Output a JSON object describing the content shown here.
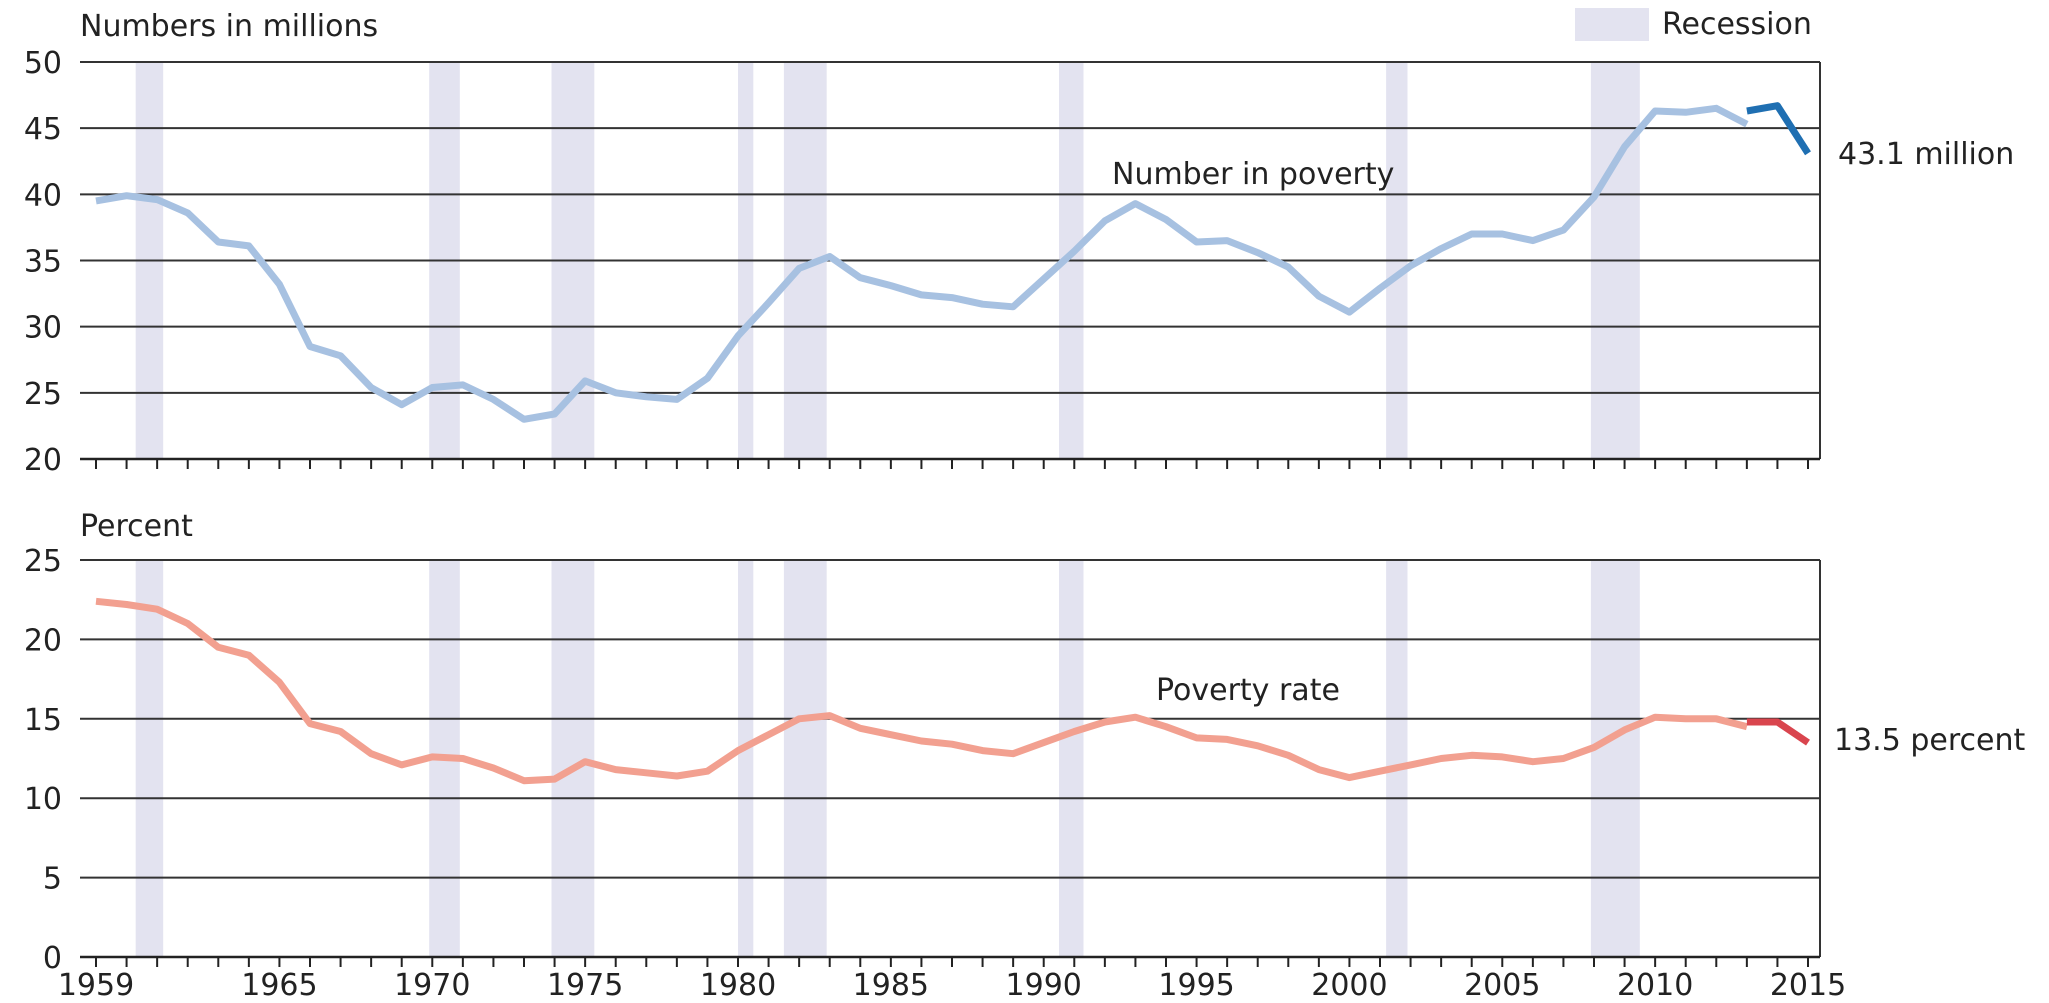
{
  "chart_data": [
    {
      "type": "line",
      "title": "",
      "ylabel": "Numbers in millions",
      "xlabel": "",
      "xlim": [
        1959,
        2015
      ],
      "ylim": [
        20,
        50
      ],
      "yticks": [
        "20",
        "25",
        "30",
        "35",
        "40",
        "45",
        "50"
      ],
      "xticks": [
        "1959",
        "1965",
        "1970",
        "1975",
        "1980",
        "1985",
        "1990",
        "1995",
        "2000",
        "2005",
        "2010",
        "2015"
      ],
      "grid": "horizontal",
      "annotation": "Number in poverty",
      "end_label": "43.1 million",
      "series": [
        {
          "color": "#a7c1e1",
          "x": [
            1959,
            1960,
            1961,
            1962,
            1963,
            1964,
            1965,
            1966,
            1967,
            1968,
            1969,
            1970,
            1971,
            1972,
            1973,
            1974,
            1975,
            1976,
            1977,
            1978,
            1979,
            1980,
            1981,
            1982,
            1983,
            1984,
            1985,
            1986,
            1987,
            1988,
            1989,
            1990,
            1991,
            1992,
            1993,
            1994,
            1995,
            1996,
            1997,
            1998,
            1999,
            2000,
            2001,
            2002,
            2003,
            2004,
            2005,
            2006,
            2007,
            2008,
            2009,
            2010,
            2011,
            2012,
            2013
          ],
          "values": [
            39.5,
            39.9,
            39.6,
            38.6,
            36.4,
            36.1,
            33.2,
            28.5,
            27.8,
            25.4,
            24.1,
            25.4,
            25.6,
            24.5,
            23.0,
            23.4,
            25.9,
            25.0,
            24.7,
            24.5,
            26.1,
            29.3,
            31.8,
            34.4,
            35.3,
            33.7,
            33.1,
            32.4,
            32.2,
            31.7,
            31.5,
            33.6,
            35.7,
            38.0,
            39.3,
            38.1,
            36.4,
            36.5,
            35.6,
            34.5,
            32.3,
            31.1,
            32.9,
            34.6,
            35.9,
            37.0,
            37.0,
            36.5,
            37.3,
            39.8,
            43.6,
            46.3,
            46.2,
            46.5,
            45.3
          ]
        },
        {
          "color": "#1f6fb2",
          "x": [
            2013,
            2014,
            2015
          ],
          "values": [
            46.3,
            46.7,
            43.1
          ]
        }
      ]
    },
    {
      "type": "line",
      "title": "",
      "ylabel": "Percent",
      "xlabel": "",
      "xlim": [
        1959,
        2015
      ],
      "ylim": [
        0,
        25
      ],
      "yticks": [
        "0",
        "5",
        "10",
        "15",
        "20",
        "25"
      ],
      "xticks": [
        "1959",
        "1965",
        "1970",
        "1975",
        "1980",
        "1985",
        "1990",
        "1995",
        "2000",
        "2005",
        "2010",
        "2015"
      ],
      "grid": "horizontal",
      "annotation": "Poverty rate",
      "end_label": "13.5 percent",
      "series": [
        {
          "color": "#f2a090",
          "x": [
            1959,
            1960,
            1961,
            1962,
            1963,
            1964,
            1965,
            1966,
            1967,
            1968,
            1969,
            1970,
            1971,
            1972,
            1973,
            1974,
            1975,
            1976,
            1977,
            1978,
            1979,
            1980,
            1981,
            1982,
            1983,
            1984,
            1985,
            1986,
            1987,
            1988,
            1989,
            1990,
            1991,
            1992,
            1993,
            1994,
            1995,
            1996,
            1997,
            1998,
            1999,
            2000,
            2001,
            2002,
            2003,
            2004,
            2005,
            2006,
            2007,
            2008,
            2009,
            2010,
            2011,
            2012,
            2013
          ],
          "values": [
            22.4,
            22.2,
            21.9,
            21.0,
            19.5,
            19.0,
            17.3,
            14.7,
            14.2,
            12.8,
            12.1,
            12.6,
            12.5,
            11.9,
            11.1,
            11.2,
            12.3,
            11.8,
            11.6,
            11.4,
            11.7,
            13.0,
            14.0,
            15.0,
            15.2,
            14.4,
            14.0,
            13.6,
            13.4,
            13.0,
            12.8,
            13.5,
            14.2,
            14.8,
            15.1,
            14.5,
            13.8,
            13.7,
            13.3,
            12.7,
            11.8,
            11.3,
            11.7,
            12.1,
            12.5,
            12.7,
            12.6,
            12.3,
            12.5,
            13.2,
            14.3,
            15.1,
            15.0,
            15.0,
            14.5
          ]
        },
        {
          "color": "#d9454e",
          "x": [
            2013,
            2014,
            2015
          ],
          "values": [
            14.8,
            14.8,
            13.5
          ]
        }
      ]
    }
  ],
  "recessions": [
    [
      1960.3,
      1961.2
    ],
    [
      1969.9,
      1970.9
    ],
    [
      1973.9,
      1975.3
    ],
    [
      1980.0,
      1980.5
    ],
    [
      1981.5,
      1982.9
    ],
    [
      1990.5,
      1991.3
    ],
    [
      2001.2,
      2001.9
    ],
    [
      2007.9,
      2009.5
    ]
  ],
  "legend": {
    "label": "Recession",
    "color": "#e3e3f0",
    "position": "top-right"
  }
}
